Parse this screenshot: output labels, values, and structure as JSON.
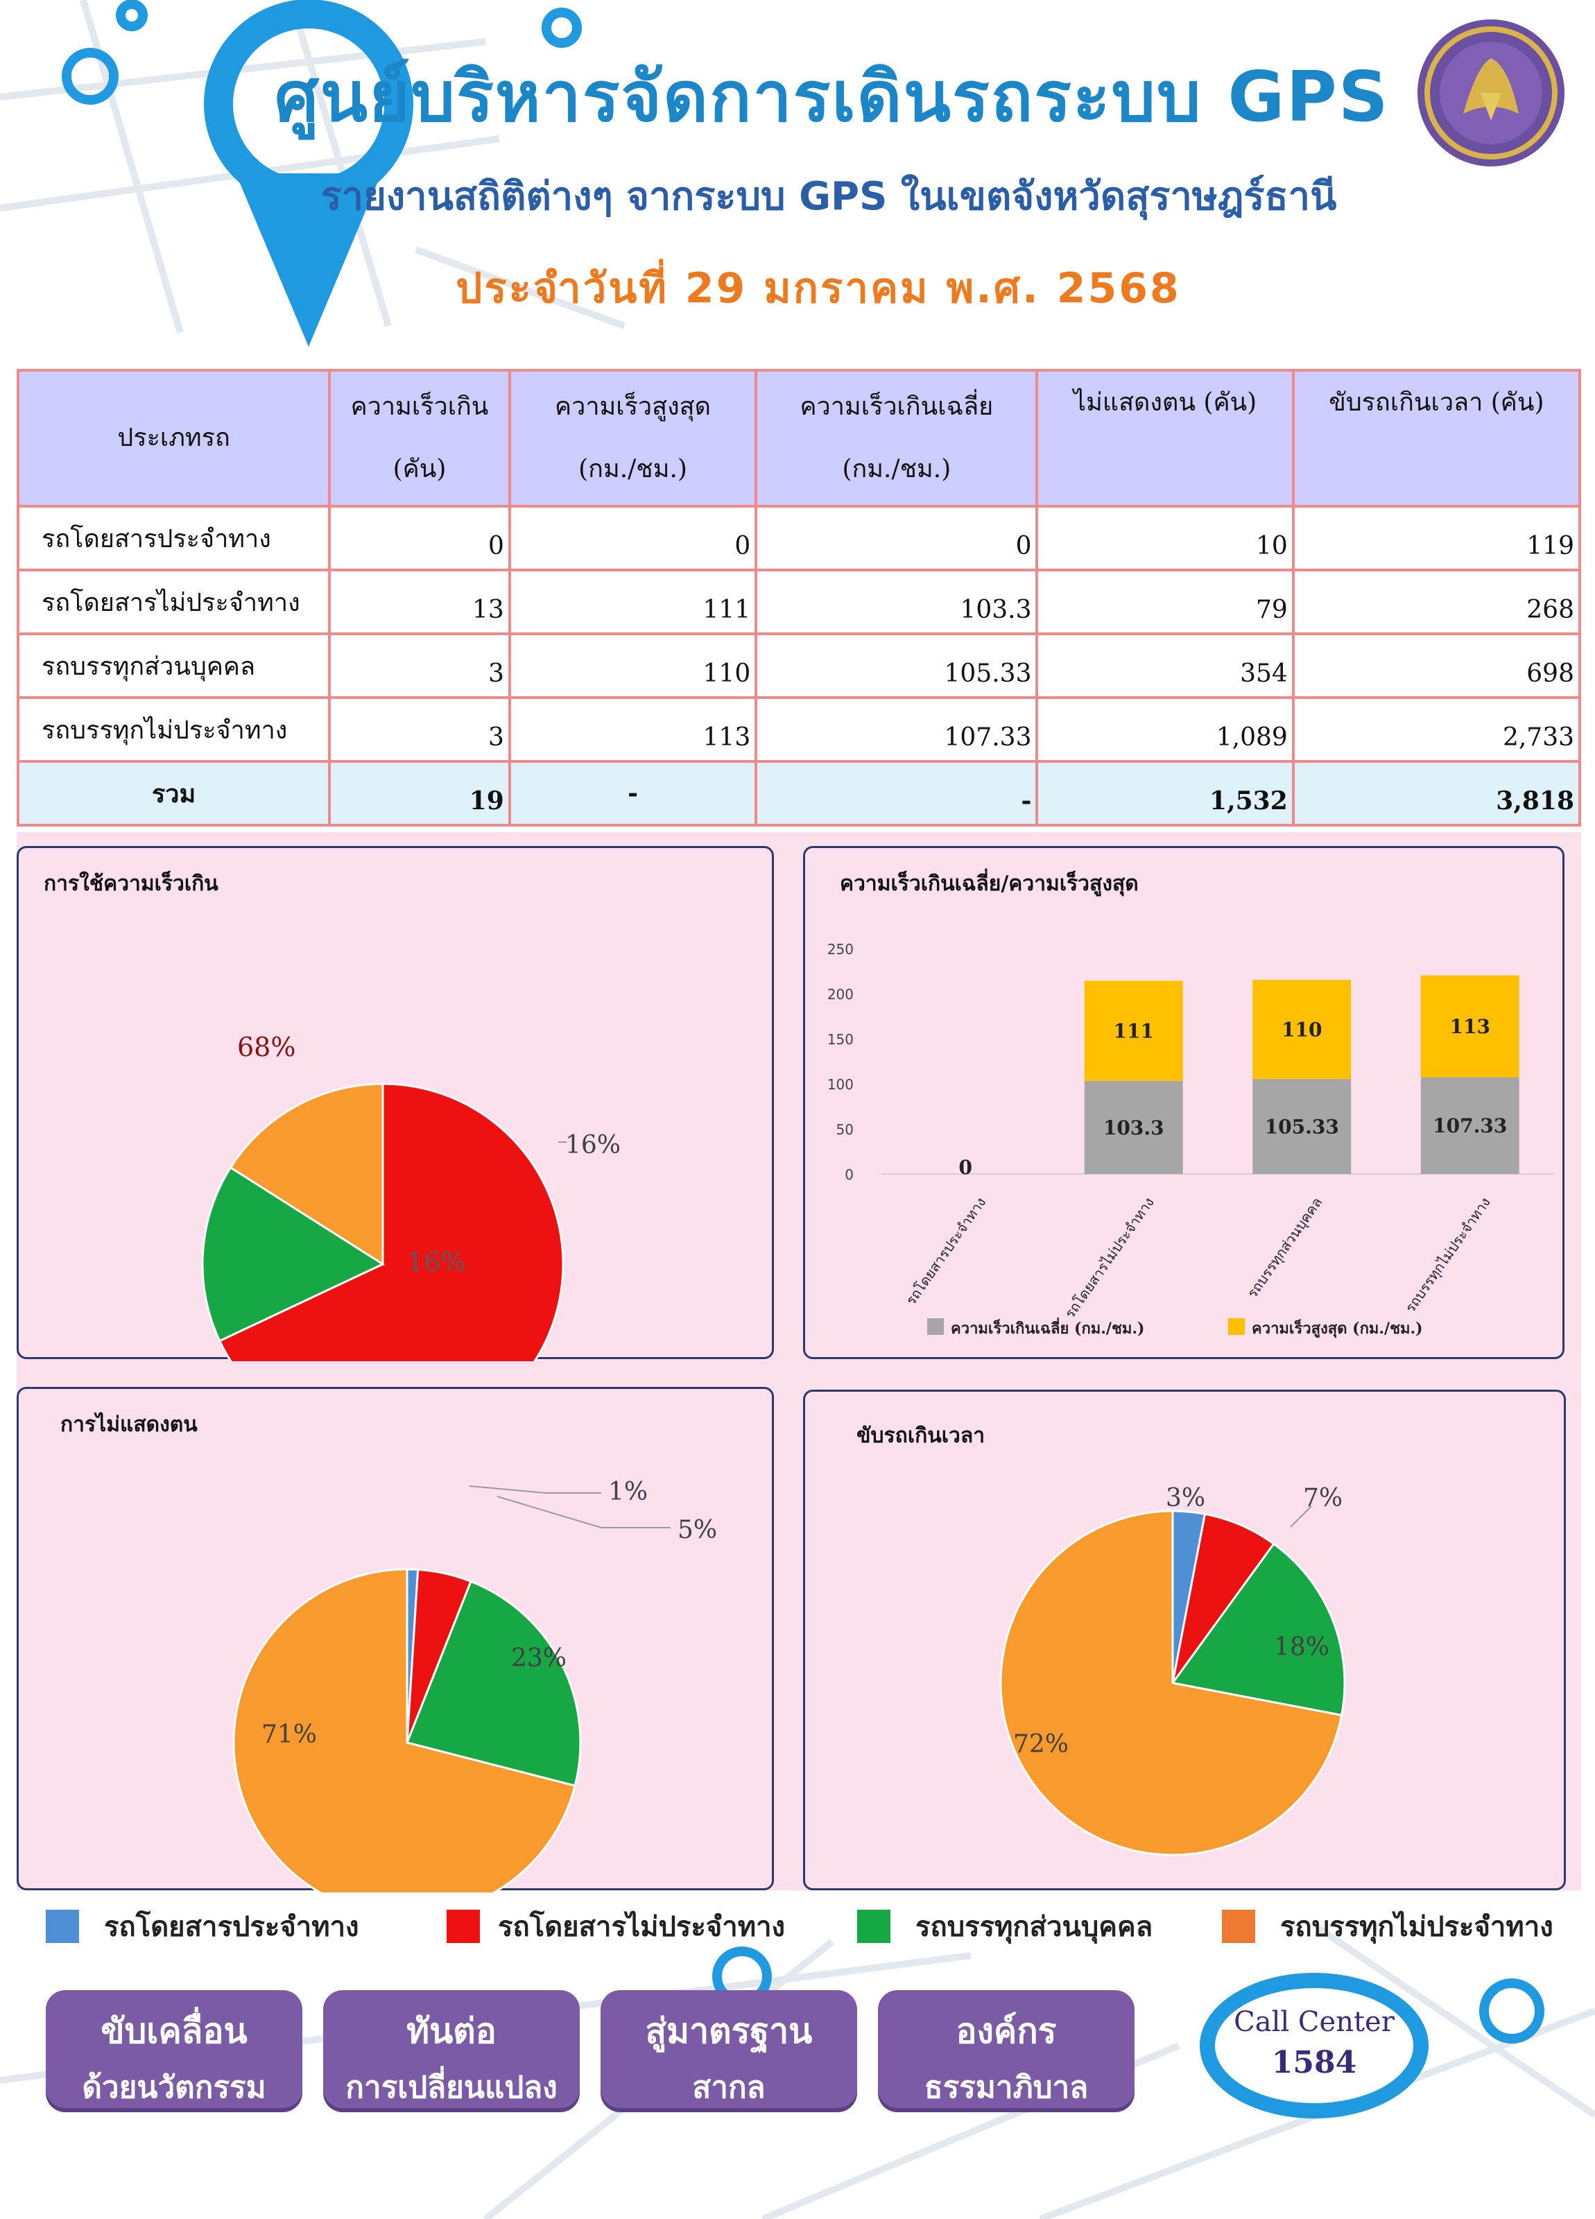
{
  "header": {
    "title": "ศูนย์บริหารจัดการเดินรถระบบ GPS",
    "subtitle": "รายงานสถิติต่างๆ จากระบบ GPS ในเขตจังหวัดสุราษฎร์ธานี",
    "date": "ประจำวันที่  29  มกราคม  พ.ศ. 2568"
  },
  "table": {
    "headers": [
      "ประเภทรถ",
      "ความเร็วเกิน (คัน)",
      "ความเร็วสูงสุด (กม./ชม.)",
      "ความเร็วเกินเฉลี่ย (กม./ชม.)",
      "ไม่แสดงตน (คัน)",
      "ขับรถเกินเวลา (คัน)"
    ],
    "header_lines": [
      [
        "ประเภทรถ"
      ],
      [
        "ความเร็วเกิน",
        "(คัน)"
      ],
      [
        "ความเร็วสูงสุด",
        "(กม./ชม.)"
      ],
      [
        "ความเร็วเกินเฉลี่ย",
        "(กม./ชม.)"
      ],
      [
        "ไม่แสดงตน (คัน)",
        ""
      ],
      [
        "ขับรถเกินเวลา (คัน)",
        ""
      ]
    ],
    "rows": [
      [
        "รถโดยสารประจำทาง",
        "0",
        "0",
        "0",
        "10",
        "119"
      ],
      [
        "รถโดยสารไม่ประจำทาง",
        "13",
        "111",
        "103.3",
        "79",
        "268"
      ],
      [
        "รถบรรทุกส่วนบุคคล",
        "3",
        "110",
        "105.33",
        "354",
        "698"
      ],
      [
        "รถบรรทุกไม่ประจำทาง",
        "3",
        "113",
        "107.33",
        "1,089",
        "2,733"
      ]
    ],
    "total": [
      "รวม",
      "19",
      "-",
      "-",
      "1,532",
      "3,818"
    ]
  },
  "colors": {
    "bus_fixed": "#4f8fd6",
    "bus_nonfixed": "#ee1111",
    "truck_private": "#17a845",
    "truck_nonfixed": "#f99a2f",
    "bar_avg": "#a6a6a6",
    "bar_max": "#ffc000"
  },
  "chart_data": [
    {
      "type": "pie",
      "title": "การใช้ความเร็วเกิน",
      "slices": [
        {
          "label": "รถโดยสารประจำทาง",
          "value": 0,
          "display": "0%"
        },
        {
          "label": "รถโดยสารไม่ประจำทาง",
          "value": 68,
          "display": "68%"
        },
        {
          "label": "รถบรรทุกส่วนบุคคล",
          "value": 16,
          "display": "16%"
        },
        {
          "label": "รถบรรทุกไม่ประจำทาง",
          "value": 16,
          "display": "16%"
        }
      ]
    },
    {
      "type": "bar",
      "stacked": true,
      "title": "ความเร็วเกินเฉลี่ย/ความเร็วสูงสุด",
      "categories": [
        "รถโดยสารประจำทาง",
        "รถโดยสารไม่ประจำทาง",
        "รถบรรทุกส่วนบุคคล",
        "รถบรรทุกไม่ประจำทาง"
      ],
      "series": [
        {
          "name": "ความเร็วเกินเฉลี่ย (กม./ชม.)",
          "values": [
            0,
            103.3,
            105.33,
            107.33
          ],
          "labels": [
            "0",
            "103.3",
            "105.33",
            "107.33"
          ]
        },
        {
          "name": "ความเร็วสูงสุด (กม./ชม.)",
          "values": [
            0,
            111,
            110,
            113
          ],
          "labels": [
            "0",
            "111",
            "110",
            "113"
          ]
        }
      ],
      "ylim": [
        0,
        250
      ],
      "yticks": [
        0,
        50,
        100,
        150,
        200,
        250
      ],
      "legend": "bottom"
    },
    {
      "type": "pie",
      "title": "การไม่แสดงตน",
      "slices": [
        {
          "label": "รถโดยสารประจำทาง",
          "value": 1,
          "display": "1%"
        },
        {
          "label": "รถโดยสารไม่ประจำทาง",
          "value": 5,
          "display": "5%"
        },
        {
          "label": "รถบรรทุกส่วนบุคคล",
          "value": 23,
          "display": "23%"
        },
        {
          "label": "รถบรรทุกไม่ประจำทาง",
          "value": 71,
          "display": "71%"
        }
      ]
    },
    {
      "type": "pie",
      "title": "ขับรถเกินเวลา",
      "slices": [
        {
          "label": "รถโดยสารประจำทาง",
          "value": 3,
          "display": "3%"
        },
        {
          "label": "รถโดยสารไม่ประจำทาง",
          "value": 7,
          "display": "7%"
        },
        {
          "label": "รถบรรทุกส่วนบุคคล",
          "value": 18,
          "display": "18%"
        },
        {
          "label": "รถบรรทุกไม่ประจำทาง",
          "value": 72,
          "display": "72%"
        }
      ]
    }
  ],
  "legend": [
    "รถโดยสารประจำทาง",
    "รถโดยสารไม่ประจำทาง",
    "รถบรรทุกส่วนบุคคล",
    "รถบรรทุกไม่ประจำทาง"
  ],
  "buttons": [
    {
      "line1": "ขับเคลื่อน",
      "line2": "ด้วยนวัตกรรม"
    },
    {
      "line1": "ทันต่อ",
      "line2": "การเปลี่ยนแปลง"
    },
    {
      "line1": "สู่มาตรฐาน",
      "line2": "สากล"
    },
    {
      "line1": "องค์กร",
      "line2": "ธรรมาภิบาล"
    }
  ],
  "call_center": {
    "label": "Call Center",
    "number": "1584"
  }
}
